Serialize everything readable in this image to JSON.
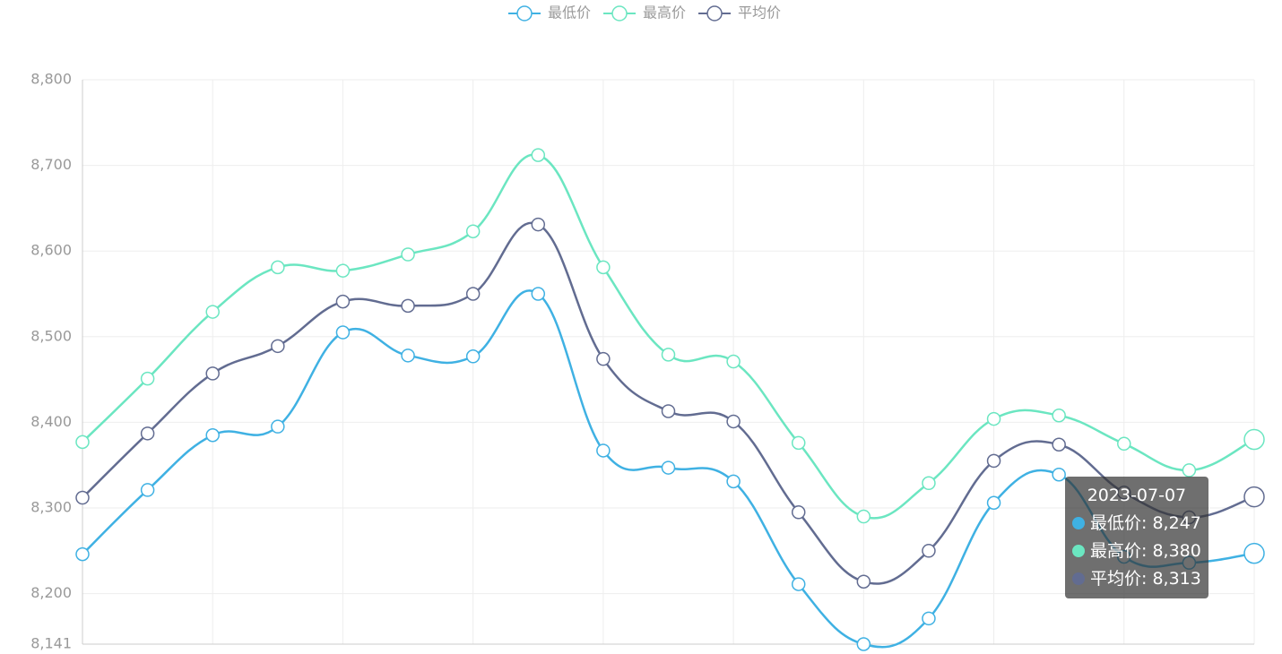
{
  "chart_data": {
    "type": "line",
    "categories": [
      null,
      null,
      null,
      null,
      null,
      null,
      null,
      null,
      null,
      null,
      null,
      null,
      null,
      null,
      null,
      null,
      null,
      null,
      "2023-07-07"
    ],
    "series": [
      {
        "name": "最低价",
        "color": "#3fb1e3",
        "values": [
          8246,
          8321,
          8385,
          8395,
          8505,
          8478,
          8477,
          8550,
          8367,
          8347,
          8331,
          8211,
          8141,
          8171,
          8306,
          8339,
          8243,
          8236,
          8247
        ],
        "value_labels": [
          null,
          null,
          null,
          null,
          null,
          null,
          null,
          null,
          null,
          null,
          null,
          null,
          null,
          null,
          null,
          null,
          null,
          null,
          "8,247"
        ]
      },
      {
        "name": "最高价",
        "color": "#6be6c1",
        "values": [
          8377,
          8451,
          8529,
          8581,
          8577,
          8596,
          8623,
          8712,
          8581,
          8479,
          8471,
          8376,
          8290,
          8329,
          8404,
          8408,
          8375,
          8344,
          8380
        ],
        "value_labels": [
          null,
          null,
          null,
          null,
          null,
          null,
          null,
          null,
          null,
          null,
          null,
          null,
          null,
          null,
          null,
          null,
          null,
          null,
          "8,380"
        ]
      },
      {
        "name": "平均价",
        "color": "#626c91",
        "values": [
          8312,
          8387,
          8457,
          8489,
          8541,
          8536,
          8550,
          8631,
          8474,
          8413,
          8401,
          8295,
          8214,
          8250,
          8355,
          8374,
          8318,
          8289,
          8313
        ],
        "value_labels": [
          null,
          null,
          null,
          null,
          null,
          null,
          null,
          null,
          null,
          null,
          null,
          null,
          null,
          null,
          null,
          null,
          null,
          null,
          "8,313"
        ]
      }
    ],
    "ylim": [
      8141,
      8800
    ],
    "yticks": [
      {
        "value": 8141,
        "label": "8,141"
      },
      {
        "value": 8200,
        "label": "8,200"
      },
      {
        "value": 8300,
        "label": "8,300"
      },
      {
        "value": 8400,
        "label": "8,400"
      },
      {
        "value": 8500,
        "label": "8,500"
      },
      {
        "value": 8600,
        "label": "8,600"
      },
      {
        "value": 8700,
        "label": "8,700"
      },
      {
        "value": 8800,
        "label": "8,800"
      }
    ],
    "grid": true,
    "smooth": true,
    "legend": "top",
    "tooltip_separator": ": "
  }
}
